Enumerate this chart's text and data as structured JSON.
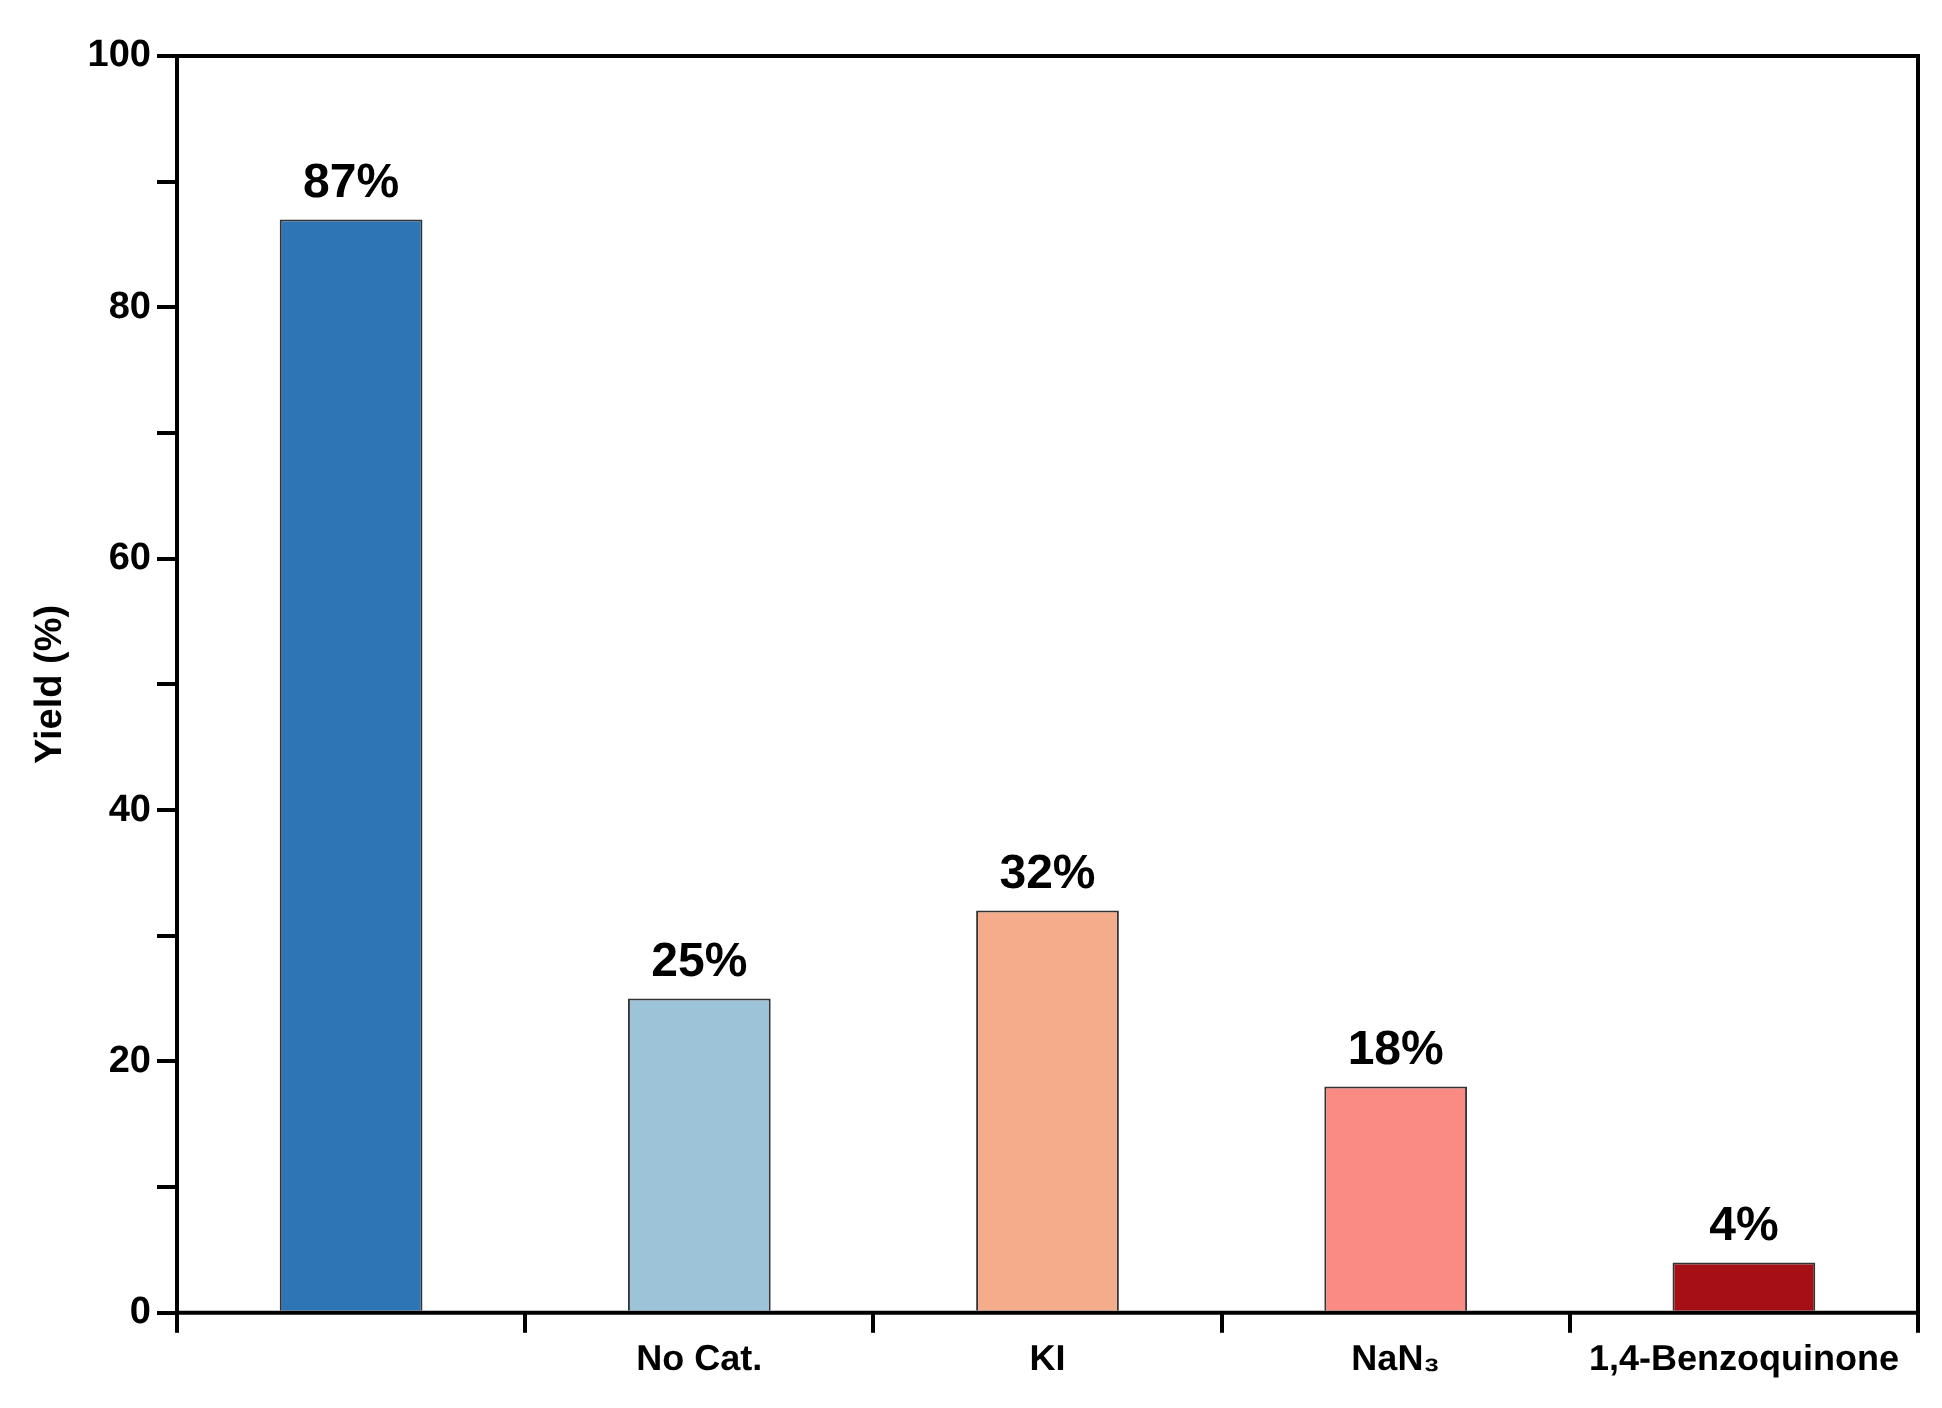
{
  "chart_data": {
    "type": "bar",
    "ylabel": "Yield (%)",
    "categories": [
      null,
      "No Cat.",
      "KI",
      "NaN₃",
      "1,4-Benzoquinone"
    ],
    "values": [
      87,
      25,
      32,
      18,
      4
    ],
    "colors": [
      "#2e75b6",
      "#9dc3d9",
      "#f4ac8b",
      "#f98a84",
      "#a50f15"
    ],
    "value_labels": [
      "87%",
      "25%",
      "32%",
      "18%",
      "4%"
    ],
    "ylim": [
      0,
      100
    ],
    "yticks": [
      0,
      {
        "value": 10,
        "label": null
      },
      20,
      {
        "value": 30,
        "label": null
      },
      40,
      {
        "value": 50,
        "label": null
      },
      60,
      {
        "value": 70,
        "label": null
      },
      80,
      {
        "value": 90,
        "label": null
      },
      100
    ],
    "grid": false,
    "legend": false
  }
}
